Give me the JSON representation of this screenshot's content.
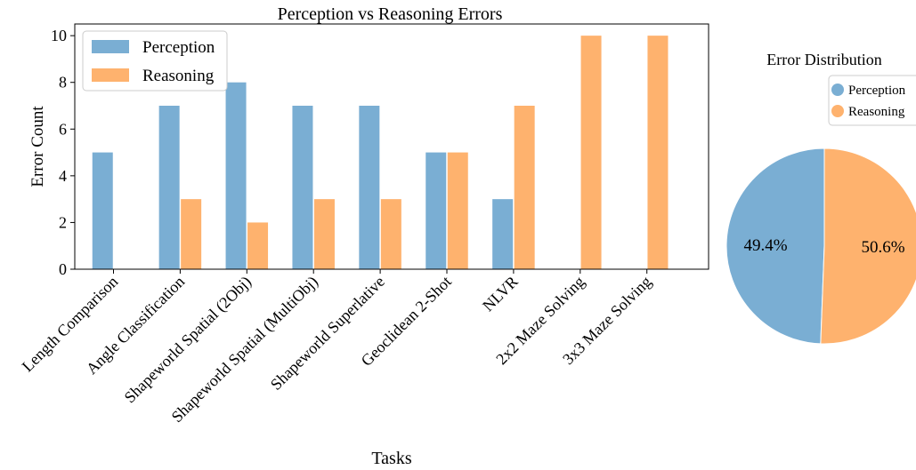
{
  "chart_data": [
    {
      "type": "bar",
      "title": "Perception vs Reasoning Errors",
      "xlabel": "Tasks",
      "ylabel": "Error Count",
      "ylim": [
        0,
        10.5
      ],
      "yticks": [
        0,
        2,
        4,
        6,
        8,
        10
      ],
      "categories": [
        "Length Comparison",
        "Angle Classification",
        "Shapeworld Spatial (2Obj)",
        "Shapeworld Spatial (MultiObj)",
        "Shapeworld Superlative",
        "Geoclidean 2-Shot",
        "NLVR",
        "2x2 Maze Solving",
        "3x3 Maze Solving"
      ],
      "series": [
        {
          "name": "Perception",
          "color": "#7aaed3",
          "values": [
            5,
            7,
            8,
            7,
            7,
            5,
            3,
            0,
            0
          ]
        },
        {
          "name": "Reasoning",
          "color": "#feb26e",
          "values": [
            0,
            3,
            2,
            3,
            3,
            5,
            7,
            10,
            10
          ]
        }
      ],
      "legend": "top-left",
      "grid": false
    },
    {
      "type": "pie",
      "title": "Error Distribution",
      "slices": [
        {
          "name": "Perception",
          "value": 49.4,
          "label": "49.4%",
          "color": "#7aaed3"
        },
        {
          "name": "Reasoning",
          "value": 50.6,
          "label": "50.6%",
          "color": "#feb26e"
        }
      ],
      "legend": "top-right"
    }
  ]
}
